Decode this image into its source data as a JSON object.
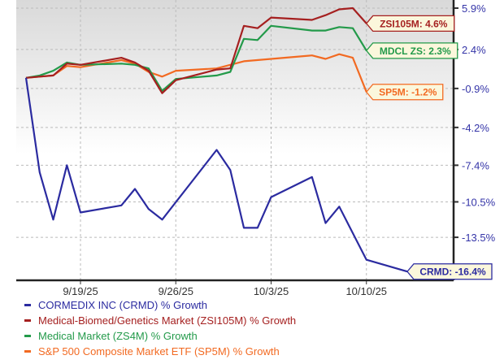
{
  "chart_data": {
    "type": "line",
    "title": "",
    "xlabel": "",
    "ylabel": "",
    "x_ticks": [
      "9/19/25",
      "9/26/25",
      "10/3/25",
      "10/10/25"
    ],
    "y_ticks": [
      "5.9%",
      "2.4%",
      "-0.9%",
      "-4.2%",
      "-7.4%",
      "-10.5%",
      "-13.5%"
    ],
    "y_tick_values": [
      5.9,
      2.4,
      -0.9,
      -4.2,
      -7.4,
      -10.5,
      -13.5
    ],
    "ylim": [
      -17.2,
      5.9
    ],
    "xlim": [
      "2025-09-15",
      "2025-10-15"
    ],
    "y_axis_side": "right",
    "grid": true,
    "legend_position": "bottom",
    "series": [
      {
        "name": "CORMEDIX INC (CRMD) % Growth",
        "color": "#2b2ba0",
        "end_label": "CRMD: -16.4%",
        "points": [
          [
            "2025-09-15",
            0
          ],
          [
            "2025-09-16",
            -8.0
          ],
          [
            "2025-09-17",
            -12.0
          ],
          [
            "2025-09-18",
            -7.4
          ],
          [
            "2025-09-19",
            -11.4
          ],
          [
            "2025-09-22",
            -10.8
          ],
          [
            "2025-09-23",
            -9.4
          ],
          [
            "2025-09-24",
            -11.1
          ],
          [
            "2025-09-25",
            -12.0
          ],
          [
            "2025-09-29",
            -6.1
          ],
          [
            "2025-09-30",
            -7.8
          ],
          [
            "2025-10-01",
            -12.7
          ],
          [
            "2025-10-02",
            -12.7
          ],
          [
            "2025-10-03",
            -10.1
          ],
          [
            "2025-10-06",
            -8.4
          ],
          [
            "2025-10-07",
            -12.3
          ],
          [
            "2025-10-08",
            -10.9
          ],
          [
            "2025-10-10",
            -15.4
          ],
          [
            "2025-10-13",
            -16.4
          ]
        ]
      },
      {
        "name": "Medical-Biomed/Genetics Market (ZSI105M) % Growth",
        "color": "#a52020",
        "end_label": "ZSI105M: 4.6%",
        "points": [
          [
            "2025-09-15",
            0
          ],
          [
            "2025-09-16",
            0.1
          ],
          [
            "2025-09-17",
            0.2
          ],
          [
            "2025-09-18",
            1.2
          ],
          [
            "2025-09-19",
            1.1
          ],
          [
            "2025-09-22",
            1.7
          ],
          [
            "2025-09-23",
            1.3
          ],
          [
            "2025-09-24",
            0.6
          ],
          [
            "2025-09-25",
            -1.3
          ],
          [
            "2025-09-26",
            -0.2
          ],
          [
            "2025-09-29",
            0.7
          ],
          [
            "2025-09-30",
            0.8
          ],
          [
            "2025-10-01",
            4.4
          ],
          [
            "2025-10-02",
            4.2
          ],
          [
            "2025-10-03",
            5.1
          ],
          [
            "2025-10-06",
            4.9
          ],
          [
            "2025-10-07",
            5.3
          ],
          [
            "2025-10-08",
            5.8
          ],
          [
            "2025-10-09",
            5.9
          ],
          [
            "2025-10-10",
            4.6
          ]
        ]
      },
      {
        "name": "Medical Market (ZS4M) % Growth",
        "color": "#239a4a",
        "end_label": "MDCL ZS: 2.3%",
        "points": [
          [
            "2025-09-15",
            0
          ],
          [
            "2025-09-16",
            0.2
          ],
          [
            "2025-09-17",
            0.6
          ],
          [
            "2025-09-18",
            1.3
          ],
          [
            "2025-09-19",
            1.1
          ],
          [
            "2025-09-22",
            1.2
          ],
          [
            "2025-09-23",
            1.1
          ],
          [
            "2025-09-24",
            0.8
          ],
          [
            "2025-09-25",
            -1.1
          ],
          [
            "2025-09-26",
            -0.1
          ],
          [
            "2025-09-29",
            0.2
          ],
          [
            "2025-09-30",
            0.5
          ],
          [
            "2025-10-01",
            3.3
          ],
          [
            "2025-10-02",
            3.2
          ],
          [
            "2025-10-03",
            4.4
          ],
          [
            "2025-10-06",
            4.0
          ],
          [
            "2025-10-07",
            4.0
          ],
          [
            "2025-10-08",
            4.3
          ],
          [
            "2025-10-09",
            4.2
          ],
          [
            "2025-10-10",
            2.3
          ]
        ]
      },
      {
        "name": "S&P 500 Composite Market ETF (SP5M) % Growth",
        "color": "#f26a22",
        "end_label": "SP5M: -1.2%",
        "points": [
          [
            "2025-09-15",
            0
          ],
          [
            "2025-09-16",
            0.1
          ],
          [
            "2025-09-17",
            0.2
          ],
          [
            "2025-09-18",
            1.0
          ],
          [
            "2025-09-19",
            0.9
          ],
          [
            "2025-09-22",
            1.5
          ],
          [
            "2025-09-23",
            1.2
          ],
          [
            "2025-09-24",
            0.5
          ],
          [
            "2025-09-25",
            0.1
          ],
          [
            "2025-09-26",
            0.6
          ],
          [
            "2025-09-29",
            0.8
          ],
          [
            "2025-09-30",
            1.1
          ],
          [
            "2025-10-01",
            1.4
          ],
          [
            "2025-10-03",
            1.6
          ],
          [
            "2025-10-06",
            1.9
          ],
          [
            "2025-10-07",
            1.6
          ],
          [
            "2025-10-08",
            2.0
          ],
          [
            "2025-10-09",
            1.7
          ],
          [
            "2025-10-10",
            -1.2
          ]
        ]
      }
    ]
  }
}
